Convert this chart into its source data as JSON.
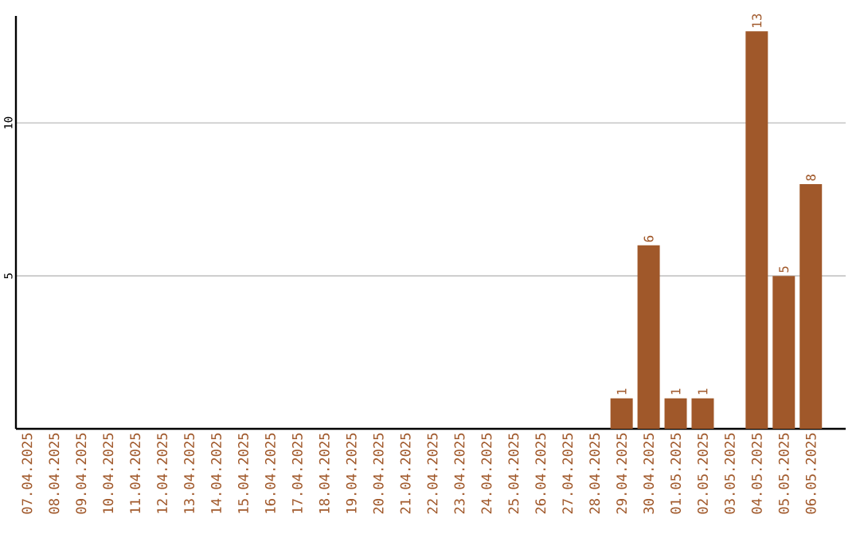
{
  "chart_data": {
    "type": "bar",
    "categories": [
      "07.04.2025",
      "08.04.2025",
      "09.04.2025",
      "10.04.2025",
      "11.04.2025",
      "12.04.2025",
      "13.04.2025",
      "14.04.2025",
      "15.04.2025",
      "16.04.2025",
      "17.04.2025",
      "18.04.2025",
      "19.04.2025",
      "20.04.2025",
      "21.04.2025",
      "22.04.2025",
      "23.04.2025",
      "24.04.2025",
      "25.04.2025",
      "26.04.2025",
      "27.04.2025",
      "28.04.2025",
      "29.04.2025",
      "30.04.2025",
      "01.05.2025",
      "02.05.2025",
      "03.05.2025",
      "04.05.2025",
      "05.05.2025",
      "06.05.2025"
    ],
    "values": [
      0,
      0,
      0,
      0,
      0,
      0,
      0,
      0,
      0,
      0,
      0,
      0,
      0,
      0,
      0,
      0,
      0,
      0,
      0,
      0,
      0,
      0,
      1,
      6,
      1,
      1,
      0,
      13,
      5,
      8
    ],
    "value_labels": [
      null,
      null,
      null,
      null,
      null,
      null,
      null,
      null,
      null,
      null,
      null,
      null,
      null,
      null,
      null,
      null,
      null,
      null,
      null,
      null,
      null,
      null,
      "1",
      "6",
      "1",
      "1",
      null,
      "13",
      "5",
      "8"
    ],
    "color": "#a0582a",
    "ylim": [
      0,
      13.5
    ],
    "yticks": [
      5,
      10
    ],
    "grid": "y"
  }
}
